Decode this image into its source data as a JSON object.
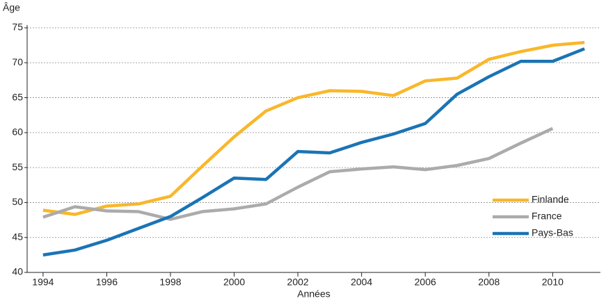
{
  "chart_data": {
    "type": "line",
    "y_label": "Âge",
    "x_label": "Années",
    "x": [
      1994,
      1995,
      1996,
      1997,
      1998,
      1999,
      2000,
      2001,
      2002,
      2003,
      2004,
      2005,
      2006,
      2007,
      2008,
      2009,
      2010,
      2011
    ],
    "series": [
      {
        "name": "Finlande",
        "color": "#f9b72a",
        "values": [
          48.9,
          48.3,
          49.5,
          49.8,
          50.9,
          55.2,
          59.4,
          63.1,
          65.0,
          66.0,
          65.9,
          65.3,
          67.4,
          67.8,
          70.5,
          71.6,
          72.5,
          72.9
        ]
      },
      {
        "name": "France",
        "color": "#ababab",
        "values": [
          47.9,
          49.4,
          48.8,
          48.7,
          47.6,
          48.7,
          49.1,
          49.8,
          52.2,
          54.4,
          54.8,
          55.1,
          54.7,
          55.3,
          56.3,
          58.5,
          60.6,
          null
        ]
      },
      {
        "name": "Pays-Bas",
        "color": "#1a74b5",
        "values": [
          42.5,
          43.2,
          44.6,
          46.3,
          48.0,
          50.7,
          53.5,
          53.3,
          57.3,
          57.1,
          58.6,
          59.8,
          61.3,
          65.5,
          68.0,
          70.2,
          70.2,
          72.0
        ]
      }
    ],
    "xlim": [
      1993.5,
      2011.5
    ],
    "xticks": [
      1994,
      1996,
      1998,
      2000,
      2002,
      2004,
      2006,
      2008,
      2010
    ],
    "ylim": [
      40,
      75
    ],
    "yticks": [
      40,
      45,
      50,
      55,
      60,
      65,
      70,
      75
    ],
    "grid": true,
    "legend": "lower right"
  }
}
